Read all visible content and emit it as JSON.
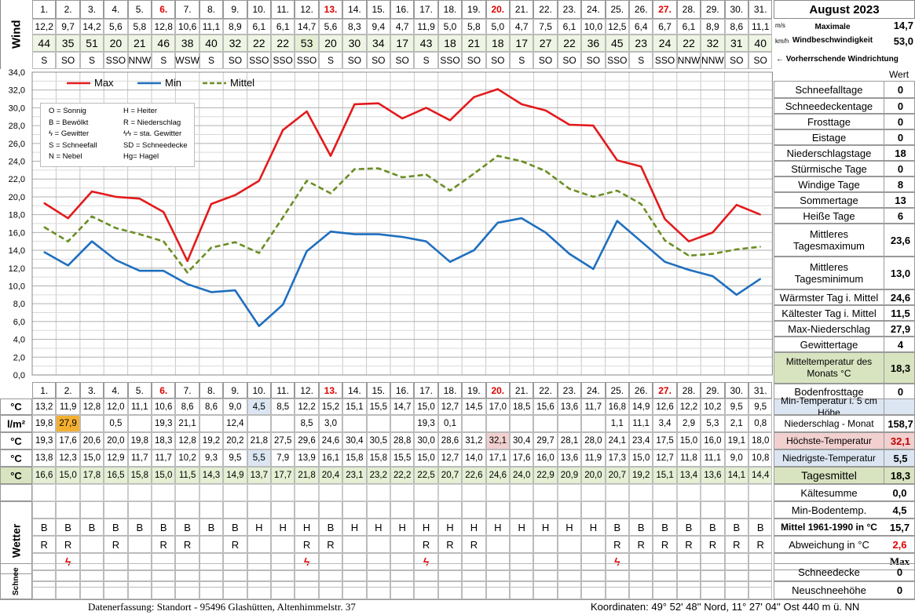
{
  "title": "August 2023",
  "days": [
    "1.",
    "2.",
    "3.",
    "4.",
    "5.",
    "6.",
    "7.",
    "8.",
    "9.",
    "10.",
    "11.",
    "12.",
    "13.",
    "14.",
    "15.",
    "16.",
    "17.",
    "18.",
    "19.",
    "20.",
    "21.",
    "22.",
    "23.",
    "24.",
    "25.",
    "26.",
    "27.",
    "28.",
    "29.",
    "30.",
    "31."
  ],
  "sundays": [
    5,
    12,
    19,
    26
  ],
  "wind": {
    "label": "Wind",
    "ms": [
      "12,2",
      "9,7",
      "14,2",
      "5,6",
      "5,8",
      "12,8",
      "10,6",
      "11,1",
      "8,9",
      "6,1",
      "6,1",
      "14,7",
      "5,6",
      "8,3",
      "9,4",
      "4,7",
      "11,9",
      "5,0",
      "5,8",
      "5,0",
      "4,7",
      "7,5",
      "6,1",
      "10,0",
      "12,5",
      "6,4",
      "6,7",
      "6,1",
      "8,9",
      "8,6",
      "11,1"
    ],
    "kmh": [
      "44",
      "35",
      "51",
      "20",
      "21",
      "46",
      "38",
      "40",
      "32",
      "22",
      "22",
      "53",
      "20",
      "30",
      "34",
      "17",
      "43",
      "18",
      "21",
      "18",
      "17",
      "27",
      "22",
      "36",
      "45",
      "23",
      "24",
      "22",
      "32",
      "31",
      "40"
    ],
    "dir": [
      "S",
      "SO",
      "S",
      "SSO",
      "NNW",
      "S",
      "WSW",
      "S",
      "SO",
      "SSO",
      "SSO",
      "SSO",
      "S",
      "SO",
      "SO",
      "SO",
      "S",
      "SSO",
      "SO",
      "SO",
      "S",
      "SO",
      "SO",
      "SO",
      "SSO",
      "S",
      "SSO",
      "NNW",
      "NNW",
      "SO",
      "SO"
    ],
    "unit_ms": "m/s",
    "unit_kmh": "km/h",
    "max_label_1": "Maximale",
    "max_label_2": "Windbeschwindigkeit",
    "max_ms": "14,7",
    "max_kmh": "53,0",
    "dir_note": "← Vorherrschende Windrichtung"
  },
  "chart_data": {
    "type": "line",
    "categories": [
      "1.",
      "2.",
      "3.",
      "4.",
      "5.",
      "6.",
      "7.",
      "8.",
      "9.",
      "10.",
      "11.",
      "12.",
      "13.",
      "14.",
      "15.",
      "16.",
      "17.",
      "18.",
      "19.",
      "20.",
      "21.",
      "22.",
      "23.",
      "24.",
      "25.",
      "26.",
      "27.",
      "28.",
      "29.",
      "30.",
      "31."
    ],
    "ylim": [
      0,
      34
    ],
    "yticks": [
      "0,0",
      "2,0",
      "4,0",
      "6,0",
      "8,0",
      "10,0",
      "12,0",
      "14,0",
      "16,0",
      "18,0",
      "20,0",
      "22,0",
      "24,0",
      "26,0",
      "28,0",
      "30,0",
      "32,0",
      "34,0"
    ],
    "grid": true,
    "legend_position": "top",
    "series": [
      {
        "name": "Max",
        "color": "#e31a1c",
        "style": "solid",
        "values": [
          19.3,
          17.6,
          20.6,
          20.0,
          19.8,
          18.3,
          12.8,
          19.2,
          20.2,
          21.8,
          27.5,
          29.6,
          24.6,
          30.4,
          30.5,
          28.8,
          30.0,
          28.6,
          31.2,
          32.1,
          30.4,
          29.7,
          28.1,
          28.0,
          24.1,
          23.4,
          17.5,
          15.0,
          16.0,
          19.1,
          18.0
        ]
      },
      {
        "name": "Min",
        "color": "#1f6fbf",
        "style": "solid",
        "values": [
          13.8,
          12.3,
          15.0,
          12.9,
          11.7,
          11.7,
          10.2,
          9.3,
          9.5,
          5.5,
          7.9,
          13.9,
          16.1,
          15.8,
          15.8,
          15.5,
          15.0,
          12.7,
          14.0,
          17.1,
          17.6,
          16.0,
          13.6,
          11.9,
          17.3,
          15.0,
          12.7,
          11.8,
          11.1,
          9.0,
          10.8
        ]
      },
      {
        "name": "Mittel",
        "color": "#6b8e23",
        "style": "dashed",
        "values": [
          16.6,
          15.0,
          17.8,
          16.5,
          15.8,
          15.0,
          11.5,
          14.3,
          14.9,
          13.7,
          17.7,
          21.8,
          20.4,
          23.1,
          23.2,
          22.2,
          22.5,
          20.7,
          22.6,
          24.6,
          24.0,
          22.9,
          20.9,
          20.0,
          20.7,
          19.2,
          15.1,
          13.4,
          13.6,
          14.1,
          14.4
        ]
      }
    ]
  },
  "legend_box": [
    [
      "O = Sonnig",
      "H = Heiter"
    ],
    [
      "B = Bewölkt",
      "R = Niederschlag"
    ],
    [
      "ϟ = Gewitter",
      "ϟϟ = sta. Gewitter"
    ],
    [
      "S = Schneefall",
      "SD = Schneedecke"
    ],
    [
      "N = Nebel",
      "Hg= Hagel"
    ]
  ],
  "stats_header": "Wert",
  "stats": [
    {
      "label": "Schneefalltage",
      "value": "0"
    },
    {
      "label": "Schneedeckentage",
      "value": "0"
    },
    {
      "label": "Frosttage",
      "value": "0"
    },
    {
      "label": "Eistage",
      "value": "0"
    },
    {
      "label": "Niederschlagstage",
      "value": "18"
    },
    {
      "label": "Stürmische Tage",
      "value": "0"
    },
    {
      "label": "Windige Tage",
      "value": "8"
    },
    {
      "label": "Sommertage",
      "value": "13"
    },
    {
      "label": "Heiße Tage",
      "value": "6"
    },
    {
      "label": "Mittleres Tagesmaximum",
      "value": "23,6"
    },
    {
      "label": "Mittleres Tagesminimum",
      "value": "13,0"
    },
    {
      "label": "Wärmster Tag i. Mittel",
      "value": "24,6"
    },
    {
      "label": "Kältester Tag i. Mittel",
      "value": "11,5"
    },
    {
      "label": "Max-Niederschlag",
      "value": "27,9"
    },
    {
      "label": "Gewittertage",
      "value": "4"
    },
    {
      "label": "Mitteltemperatur des Monats °C",
      "value": "18,3"
    },
    {
      "label": "Bodenfrosttage",
      "value": "0"
    }
  ],
  "rows": {
    "boden": {
      "unit": "°C",
      "label": "Min-Temperatur i. 5 cm Höhe",
      "total": "",
      "values": [
        "13,2",
        "11,9",
        "12,8",
        "12,0",
        "11,1",
        "10,6",
        "8,6",
        "8,6",
        "9,0",
        "4,5",
        "8,5",
        "12,2",
        "15,2",
        "15,1",
        "15,5",
        "14,7",
        "15,0",
        "12,7",
        "14,5",
        "17,0",
        "18,5",
        "15,6",
        "13,6",
        "11,7",
        "16,8",
        "14,9",
        "12,6",
        "12,2",
        "10,2",
        "9,5",
        "9,5"
      ]
    },
    "niederschlag": {
      "unit": "l/m²",
      "label": "Niederschlag - Monat",
      "total": "158,7",
      "values": [
        "19,8",
        "27,9",
        "",
        "0,5",
        "",
        "19,3",
        "21,1",
        "",
        "12,4",
        "",
        "",
        "8,5",
        "3,0",
        "",
        "",
        "",
        "19,3",
        "0,1",
        "",
        "",
        "",
        "",
        "",
        "",
        "1,1",
        "11,1",
        "3,4",
        "2,9",
        "5,3",
        "2,1",
        "0,8"
      ]
    },
    "hoechst": {
      "unit": "°C",
      "label": "Höchste-Temperatur",
      "total": "32,1",
      "values": [
        "19,3",
        "17,6",
        "20,6",
        "20,0",
        "19,8",
        "18,3",
        "12,8",
        "19,2",
        "20,2",
        "21,8",
        "27,5",
        "29,6",
        "24,6",
        "30,4",
        "30,5",
        "28,8",
        "30,0",
        "28,6",
        "31,2",
        "32,1",
        "30,4",
        "29,7",
        "28,1",
        "28,0",
        "24,1",
        "23,4",
        "17,5",
        "15,0",
        "16,0",
        "19,1",
        "18,0"
      ]
    },
    "niedrig": {
      "unit": "°C",
      "label": "Niedrigste-Temperatur",
      "total": "5,5",
      "values": [
        "13,8",
        "12,3",
        "15,0",
        "12,9",
        "11,7",
        "11,7",
        "10,2",
        "9,3",
        "9,5",
        "5,5",
        "7,9",
        "13,9",
        "16,1",
        "15,8",
        "15,8",
        "15,5",
        "15,0",
        "12,7",
        "14,0",
        "17,1",
        "17,6",
        "16,0",
        "13,6",
        "11,9",
        "17,3",
        "15,0",
        "12,7",
        "11,8",
        "11,1",
        "9,0",
        "10,8"
      ]
    },
    "mittel": {
      "unit": "°C",
      "label": "Tagesmittel",
      "total": "18,3",
      "values": [
        "16,6",
        "15,0",
        "17,8",
        "16,5",
        "15,8",
        "15,0",
        "11,5",
        "14,3",
        "14,9",
        "13,7",
        "17,7",
        "21,8",
        "20,4",
        "23,1",
        "23,2",
        "22,2",
        "22,5",
        "20,7",
        "22,6",
        "24,6",
        "24,0",
        "22,9",
        "20,9",
        "20,0",
        "20,7",
        "19,2",
        "15,1",
        "13,4",
        "13,6",
        "14,1",
        "14,4"
      ]
    }
  },
  "kaeltesumme": {
    "label": "Kältesumme",
    "value": "0,0"
  },
  "wetter": {
    "label": "Wetter",
    "row1": [
      "B",
      "B",
      "B",
      "B",
      "B",
      "B",
      "B",
      "B",
      "B",
      "H",
      "H",
      "H",
      "B",
      "H",
      "H",
      "H",
      "H",
      "H",
      "H",
      "H",
      "H",
      "H",
      "H",
      "H",
      "B",
      "B",
      "B",
      "B",
      "B",
      "B",
      "B"
    ],
    "row2": [
      "R",
      "R",
      "",
      "R",
      "",
      "R",
      "R",
      "",
      "R",
      "",
      "",
      "R",
      "R",
      "",
      "",
      "",
      "R",
      "R",
      "R",
      "",
      "",
      "",
      "",
      "",
      "R",
      "R",
      "R",
      "R",
      "R",
      "R",
      "R"
    ],
    "row3": [
      "",
      "ϟ",
      "",
      "",
      "",
      "",
      "",
      "",
      "",
      "",
      "",
      "ϟ",
      "",
      "",
      "",
      "",
      "ϟ",
      "",
      "",
      "",
      "",
      "",
      "",
      "",
      "ϟ",
      "",
      "",
      "",
      "",
      "",
      ""
    ],
    "side": [
      {
        "label": "Min-Bodentemp.",
        "value": "4,5"
      },
      {
        "label": "Mittel 1961-1990 in °C",
        "value": "15,7"
      },
      {
        "label": "Abweichung in °C",
        "value": "2,6"
      },
      {
        "label": "",
        "value": "Max"
      }
    ]
  },
  "schnee": {
    "label": "Schnee",
    "side": [
      {
        "label": "Schneedecke",
        "value": "0"
      },
      {
        "label": "Neuschneehöhe",
        "value": "0"
      }
    ]
  },
  "footer": {
    "left": "Datenerfassung:  Standort -  95496  Glashütten, Altenhimmelstr. 37",
    "right": "Koordinaten:  49° 52' 48'' Nord,   11° 27' 04'' Ost   440 m ü. NN"
  }
}
